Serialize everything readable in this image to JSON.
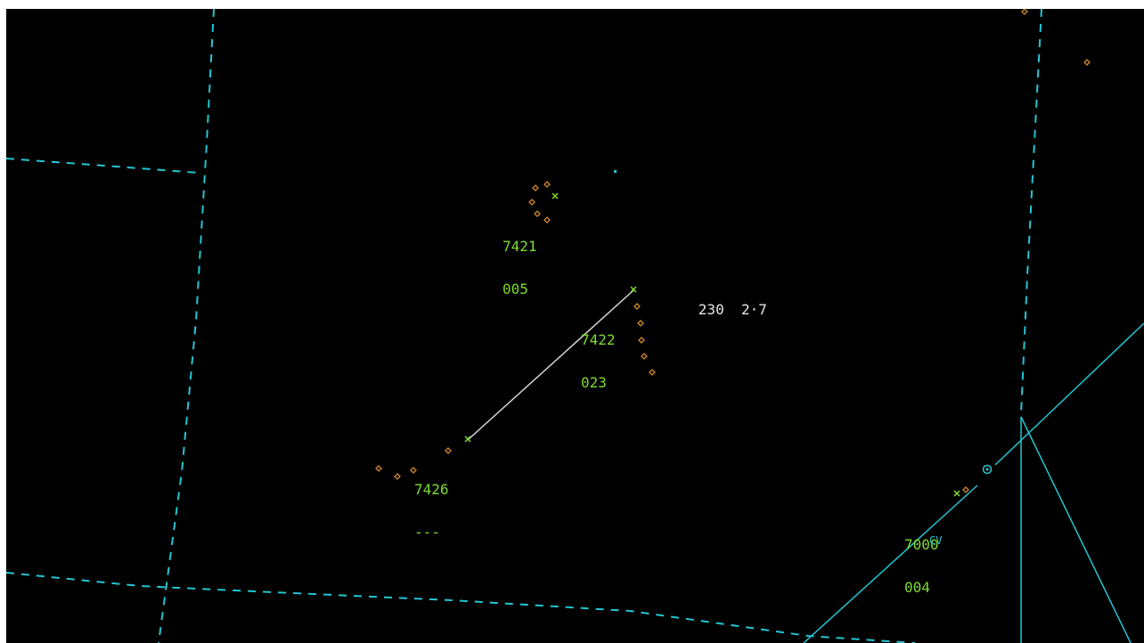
{
  "colors": {
    "background": "#000000",
    "boundary": "#23c6d2",
    "datablock": "#7ddc2e",
    "history": "#d0892c",
    "measure": "#e6e6e6"
  },
  "tracks": [
    {
      "id": "track-7421",
      "code": "7421",
      "altitude": "005"
    },
    {
      "id": "track-7422",
      "code": "7422",
      "altitude": "023"
    },
    {
      "id": "track-7426",
      "code": "7426",
      "altitude": "---"
    },
    {
      "id": "track-7000",
      "code": "7000",
      "altitude": "004"
    }
  ],
  "range_bearing": {
    "bearing": "230",
    "distance": "2·7"
  },
  "fix": {
    "label": "CV",
    "icon": "target-ring-icon"
  }
}
